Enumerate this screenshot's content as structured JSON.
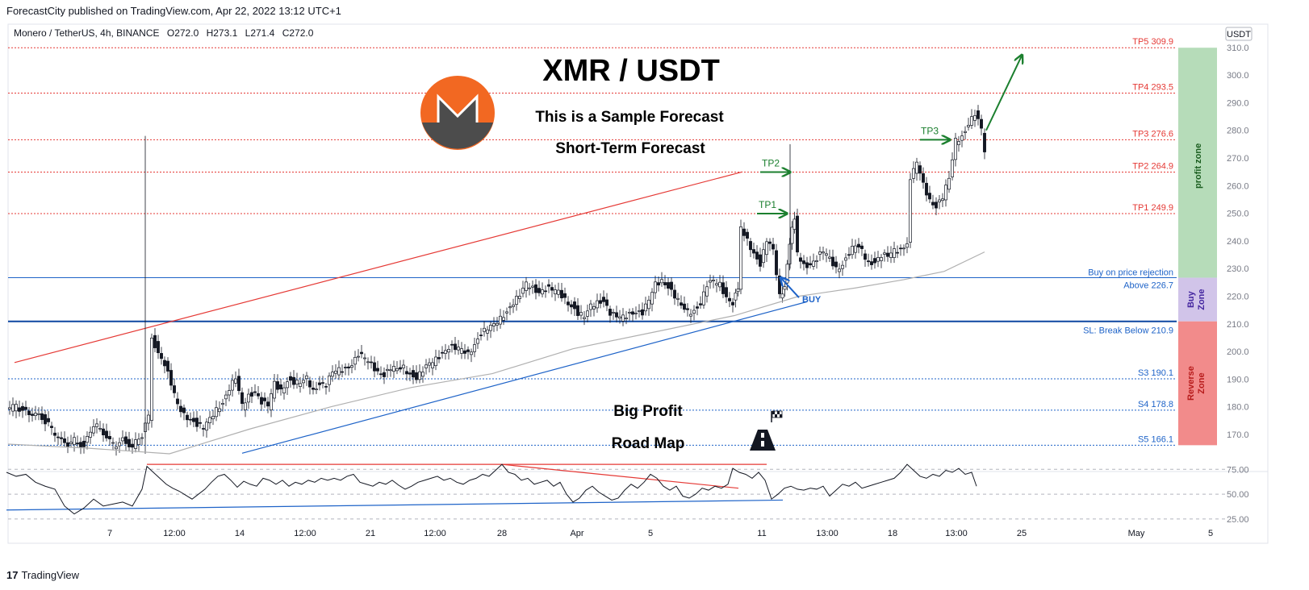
{
  "header": {
    "published": "ForecastCity published on TradingView.com, Apr 22, 2022 13:12 UTC+1",
    "symbol": "Monero / TetherUS, 4h, BINANCE",
    "ohlc": {
      "o": "O272.0",
      "h": "H273.1",
      "l": "L271.4",
      "c": "C272.0"
    },
    "currency": "USDT"
  },
  "footer": {
    "brand": "TradingView",
    "logo_text": "17"
  },
  "annotations": {
    "title": "XMR / USDT",
    "sample": "This is a Sample Forecast",
    "term": "Short-Term Forecast",
    "big_profit": "Big Profit",
    "road_map": "Road Map",
    "buy_label": "BUY",
    "tp1": "TP1",
    "tp2": "TP2",
    "tp3": "TP3"
  },
  "zones": {
    "profit": "profit zone",
    "buy": [
      "Buy",
      "Zone"
    ],
    "reverse": [
      "Reverse",
      "Zone"
    ]
  },
  "colors": {
    "up": "#26a69a",
    "down": "#ef5350",
    "candle_body_down": "#131722",
    "tp_line": "#e53935",
    "support_line": "#1e63c8",
    "green_arrow": "#1b7f2e",
    "profit_zone": "#b6dcb9",
    "buy_zone": "#d1c4e9",
    "reverse_zone": "#f28b8b"
  },
  "chart_data": {
    "type": "candlestick",
    "title": "XMR / USDT",
    "ylim": [
      163,
      312
    ],
    "price_ticks": [
      170,
      180,
      190,
      200,
      210,
      220,
      230,
      240,
      250,
      260,
      270,
      280,
      290,
      300,
      310
    ],
    "price_tick_labels": [
      "170.0",
      "180.0",
      "190.0",
      "200.0",
      "210.0",
      "220.0",
      "230.0",
      "240.0",
      "250.0",
      "260.0",
      "270.0",
      "280.0",
      "290.0",
      "300.0",
      "310.0"
    ],
    "x_ticks": [
      "7",
      "12:00",
      "14",
      "12:00",
      "21",
      "12:00",
      "28",
      "Apr",
      "5",
      "11",
      "13:00",
      "18",
      "13:00",
      "25",
      "May",
      "5"
    ],
    "levels": [
      {
        "name": "TP5",
        "value": 309.9,
        "label": "TP5 309.9",
        "kind": "tp"
      },
      {
        "name": "TP4",
        "value": 293.5,
        "label": "TP4 293.5",
        "kind": "tp"
      },
      {
        "name": "TP3",
        "value": 276.6,
        "label": "TP3 276.6",
        "kind": "tp"
      },
      {
        "name": "TP2",
        "value": 264.9,
        "label": "TP2 264.9",
        "kind": "tp"
      },
      {
        "name": "TP1",
        "value": 249.9,
        "label": "TP1 249.9",
        "kind": "tp"
      },
      {
        "name": "Entry",
        "value": 226.7,
        "label": "Above 226.7",
        "label2": "Buy on price rejection",
        "kind": "entry"
      },
      {
        "name": "SL",
        "value": 210.9,
        "label": "SL: Break Below 210.9",
        "kind": "sl"
      },
      {
        "name": "S3",
        "value": 190.1,
        "label": "S3 190.1",
        "kind": "s"
      },
      {
        "name": "S4",
        "value": 178.8,
        "label": "S4 178.8",
        "kind": "s"
      },
      {
        "name": "S5",
        "value": 166.1,
        "label": "S5 166.1",
        "kind": "s"
      }
    ],
    "price_path": [
      [
        0,
        179
      ],
      [
        12,
        180
      ],
      [
        24,
        178
      ],
      [
        36,
        178
      ],
      [
        48,
        175
      ],
      [
        60,
        170
      ],
      [
        72,
        166
      ],
      [
        84,
        168
      ],
      [
        96,
        166
      ],
      [
        108,
        174
      ],
      [
        120,
        170
      ],
      [
        132,
        166
      ],
      [
        144,
        168
      ],
      [
        156,
        166
      ],
      [
        168,
        170
      ],
      [
        176,
        176
      ],
      [
        180,
        205
      ],
      [
        188,
        200
      ],
      [
        196,
        196
      ],
      [
        204,
        188
      ],
      [
        212,
        180
      ],
      [
        220,
        177
      ],
      [
        228,
        176
      ],
      [
        236,
        174
      ],
      [
        244,
        172
      ],
      [
        252,
        175
      ],
      [
        260,
        179
      ],
      [
        268,
        182
      ],
      [
        276,
        187
      ],
      [
        284,
        190
      ],
      [
        292,
        180
      ],
      [
        300,
        184
      ],
      [
        308,
        186
      ],
      [
        316,
        182
      ],
      [
        324,
        180
      ],
      [
        332,
        188
      ],
      [
        340,
        186
      ],
      [
        348,
        190
      ],
      [
        356,
        189
      ],
      [
        364,
        188
      ],
      [
        372,
        190
      ],
      [
        380,
        186
      ],
      [
        388,
        189
      ],
      [
        396,
        188
      ],
      [
        404,
        192
      ],
      [
        412,
        193
      ],
      [
        420,
        194
      ],
      [
        428,
        196
      ],
      [
        436,
        199
      ],
      [
        444,
        197
      ],
      [
        452,
        195
      ],
      [
        460,
        193
      ],
      [
        468,
        192
      ],
      [
        476,
        194
      ],
      [
        484,
        193
      ],
      [
        492,
        194
      ],
      [
        500,
        192
      ],
      [
        508,
        191
      ],
      [
        516,
        193
      ],
      [
        524,
        195
      ],
      [
        532,
        197
      ],
      [
        540,
        200
      ],
      [
        548,
        202
      ],
      [
        556,
        201
      ],
      [
        564,
        200
      ],
      [
        572,
        199
      ],
      [
        580,
        203
      ],
      [
        588,
        207
      ],
      [
        596,
        208
      ],
      [
        604,
        209
      ],
      [
        612,
        212
      ],
      [
        620,
        215
      ],
      [
        628,
        218
      ],
      [
        636,
        220
      ],
      [
        644,
        224
      ],
      [
        652,
        223
      ],
      [
        660,
        222
      ],
      [
        668,
        223
      ],
      [
        676,
        222
      ],
      [
        684,
        221
      ],
      [
        692,
        219
      ],
      [
        700,
        217
      ],
      [
        708,
        214
      ],
      [
        716,
        212
      ],
      [
        724,
        216
      ],
      [
        732,
        218
      ],
      [
        740,
        219
      ],
      [
        748,
        214
      ],
      [
        756,
        212
      ],
      [
        764,
        212
      ],
      [
        772,
        214
      ],
      [
        780,
        215
      ],
      [
        788,
        214
      ],
      [
        796,
        218
      ],
      [
        804,
        224
      ],
      [
        812,
        226
      ],
      [
        820,
        224
      ],
      [
        828,
        220
      ],
      [
        836,
        216
      ],
      [
        844,
        214
      ],
      [
        852,
        215
      ],
      [
        860,
        218
      ],
      [
        868,
        224
      ],
      [
        876,
        225
      ],
      [
        884,
        224
      ],
      [
        892,
        220
      ],
      [
        900,
        218
      ],
      [
        906,
        223
      ],
      [
        910,
        244
      ],
      [
        918,
        240
      ],
      [
        926,
        236
      ],
      [
        934,
        232
      ],
      [
        942,
        240
      ],
      [
        950,
        236
      ],
      [
        958,
        220
      ],
      [
        964,
        224
      ],
      [
        970,
        240
      ],
      [
        976,
        248
      ],
      [
        980,
        235
      ],
      [
        988,
        231
      ],
      [
        996,
        232
      ],
      [
        1004,
        234
      ],
      [
        1012,
        236
      ],
      [
        1020,
        233
      ],
      [
        1028,
        230
      ],
      [
        1036,
        232
      ],
      [
        1044,
        236
      ],
      [
        1052,
        238
      ],
      [
        1060,
        236
      ],
      [
        1068,
        232
      ],
      [
        1076,
        233
      ],
      [
        1084,
        235
      ],
      [
        1092,
        234
      ],
      [
        1100,
        236
      ],
      [
        1108,
        237
      ],
      [
        1116,
        240
      ],
      [
        1120,
        262
      ],
      [
        1128,
        268
      ],
      [
        1136,
        260
      ],
      [
        1144,
        255
      ],
      [
        1152,
        253
      ],
      [
        1160,
        256
      ],
      [
        1168,
        262
      ],
      [
        1176,
        276
      ],
      [
        1184,
        278
      ],
      [
        1192,
        283
      ],
      [
        1200,
        286
      ],
      [
        1208,
        280
      ],
      [
        1212,
        272
      ]
    ],
    "ma_path": [
      [
        0,
        166.5
      ],
      [
        100,
        165
      ],
      [
        200,
        163
      ],
      [
        300,
        172
      ],
      [
        400,
        180
      ],
      [
        500,
        187
      ],
      [
        600,
        192
      ],
      [
        700,
        201
      ],
      [
        800,
        207
      ],
      [
        900,
        213
      ],
      [
        980,
        220
      ],
      [
        1050,
        223
      ],
      [
        1110,
        226
      ],
      [
        1160,
        229
      ],
      [
        1210,
        236
      ]
    ],
    "trendlines": [
      {
        "name": "upper-red",
        "color": "#e53935",
        "from": [
          8,
          196
        ],
        "to": [
          910,
          265
        ]
      },
      {
        "name": "support-blue",
        "color": "#1e63c8",
        "from": [
          290,
          163.2
        ],
        "to": [
          990,
          218
        ]
      }
    ],
    "rsi": {
      "ylim": [
        20,
        85
      ],
      "ticks": [
        25,
        50,
        75
      ],
      "tick_labels": [
        "25.00",
        "50.00",
        "75.00"
      ],
      "path": [
        [
          8,
          72
        ],
        [
          20,
          68
        ],
        [
          32,
          70
        ],
        [
          44,
          62
        ],
        [
          56,
          58
        ],
        [
          68,
          55
        ],
        [
          80,
          38
        ],
        [
          92,
          30
        ],
        [
          104,
          36
        ],
        [
          116,
          45
        ],
        [
          128,
          38
        ],
        [
          140,
          40
        ],
        [
          152,
          42
        ],
        [
          164,
          38
        ],
        [
          176,
          55
        ],
        [
          182,
          78
        ],
        [
          190,
          72
        ],
        [
          198,
          66
        ],
        [
          206,
          60
        ],
        [
          214,
          56
        ],
        [
          222,
          53
        ],
        [
          230,
          49
        ],
        [
          238,
          45
        ],
        [
          246,
          50
        ],
        [
          254,
          55
        ],
        [
          262,
          62
        ],
        [
          270,
          68
        ],
        [
          278,
          70
        ],
        [
          286,
          64
        ],
        [
          294,
          57
        ],
        [
          302,
          63
        ],
        [
          310,
          60
        ],
        [
          318,
          58
        ],
        [
          326,
          66
        ],
        [
          334,
          64
        ],
        [
          342,
          60
        ],
        [
          350,
          64
        ],
        [
          358,
          58
        ],
        [
          366,
          62
        ],
        [
          374,
          60
        ],
        [
          382,
          64
        ],
        [
          390,
          62
        ],
        [
          398,
          66
        ],
        [
          406,
          64
        ],
        [
          414,
          66
        ],
        [
          422,
          64
        ],
        [
          430,
          68
        ],
        [
          438,
          70
        ],
        [
          446,
          62
        ],
        [
          454,
          60
        ],
        [
          462,
          58
        ],
        [
          470,
          62
        ],
        [
          478,
          60
        ],
        [
          486,
          64
        ],
        [
          494,
          59
        ],
        [
          502,
          55
        ],
        [
          510,
          58
        ],
        [
          518,
          62
        ],
        [
          526,
          64
        ],
        [
          534,
          66
        ],
        [
          542,
          68
        ],
        [
          550,
          64
        ],
        [
          558,
          66
        ],
        [
          566,
          62
        ],
        [
          574,
          60
        ],
        [
          582,
          64
        ],
        [
          590,
          66
        ],
        [
          598,
          70
        ],
        [
          606,
          68
        ],
        [
          614,
          74
        ],
        [
          622,
          80
        ],
        [
          630,
          72
        ],
        [
          638,
          70
        ],
        [
          646,
          64
        ],
        [
          654,
          66
        ],
        [
          662,
          60
        ],
        [
          670,
          62
        ],
        [
          678,
          64
        ],
        [
          686,
          58
        ],
        [
          694,
          62
        ],
        [
          702,
          50
        ],
        [
          710,
          42
        ],
        [
          718,
          46
        ],
        [
          726,
          54
        ],
        [
          734,
          58
        ],
        [
          742,
          52
        ],
        [
          750,
          48
        ],
        [
          758,
          44
        ],
        [
          766,
          46
        ],
        [
          774,
          54
        ],
        [
          782,
          60
        ],
        [
          790,
          56
        ],
        [
          798,
          62
        ],
        [
          806,
          70
        ],
        [
          814,
          66
        ],
        [
          822,
          58
        ],
        [
          830,
          54
        ],
        [
          838,
          58
        ],
        [
          846,
          48
        ],
        [
          854,
          46
        ],
        [
          862,
          50
        ],
        [
          870,
          56
        ],
        [
          878,
          54
        ],
        [
          886,
          58
        ],
        [
          894,
          56
        ],
        [
          902,
          60
        ],
        [
          908,
          76
        ],
        [
          916,
          72
        ],
        [
          924,
          70
        ],
        [
          932,
          66
        ],
        [
          940,
          72
        ],
        [
          948,
          64
        ],
        [
          956,
          45
        ],
        [
          964,
          50
        ],
        [
          972,
          56
        ],
        [
          980,
          58
        ],
        [
          988,
          55
        ],
        [
          996,
          54
        ],
        [
          1004,
          56
        ],
        [
          1012,
          55
        ],
        [
          1020,
          58
        ],
        [
          1028,
          48
        ],
        [
          1036,
          54
        ],
        [
          1044,
          60
        ],
        [
          1052,
          58
        ],
        [
          1060,
          62
        ],
        [
          1068,
          56
        ],
        [
          1076,
          58
        ],
        [
          1084,
          60
        ],
        [
          1092,
          62
        ],
        [
          1100,
          64
        ],
        [
          1108,
          66
        ],
        [
          1116,
          72
        ],
        [
          1124,
          80
        ],
        [
          1132,
          74
        ],
        [
          1140,
          68
        ],
        [
          1148,
          66
        ],
        [
          1156,
          70
        ],
        [
          1164,
          68
        ],
        [
          1172,
          74
        ],
        [
          1180,
          72
        ],
        [
          1188,
          76
        ],
        [
          1196,
          70
        ],
        [
          1204,
          72
        ],
        [
          1210,
          58
        ]
      ],
      "lines": [
        {
          "name": "rsi-red-flat",
          "color": "#e53935",
          "from": [
            182,
            80
          ],
          "to": [
            950,
            80
          ]
        },
        {
          "name": "rsi-red-slope",
          "color": "#e53935",
          "from": [
            622,
            80
          ],
          "to": [
            915,
            56
          ]
        },
        {
          "name": "rsi-blue-support",
          "color": "#1e63c8",
          "from": [
            8,
            34
          ],
          "to": [
            970,
            44
          ]
        }
      ]
    }
  }
}
